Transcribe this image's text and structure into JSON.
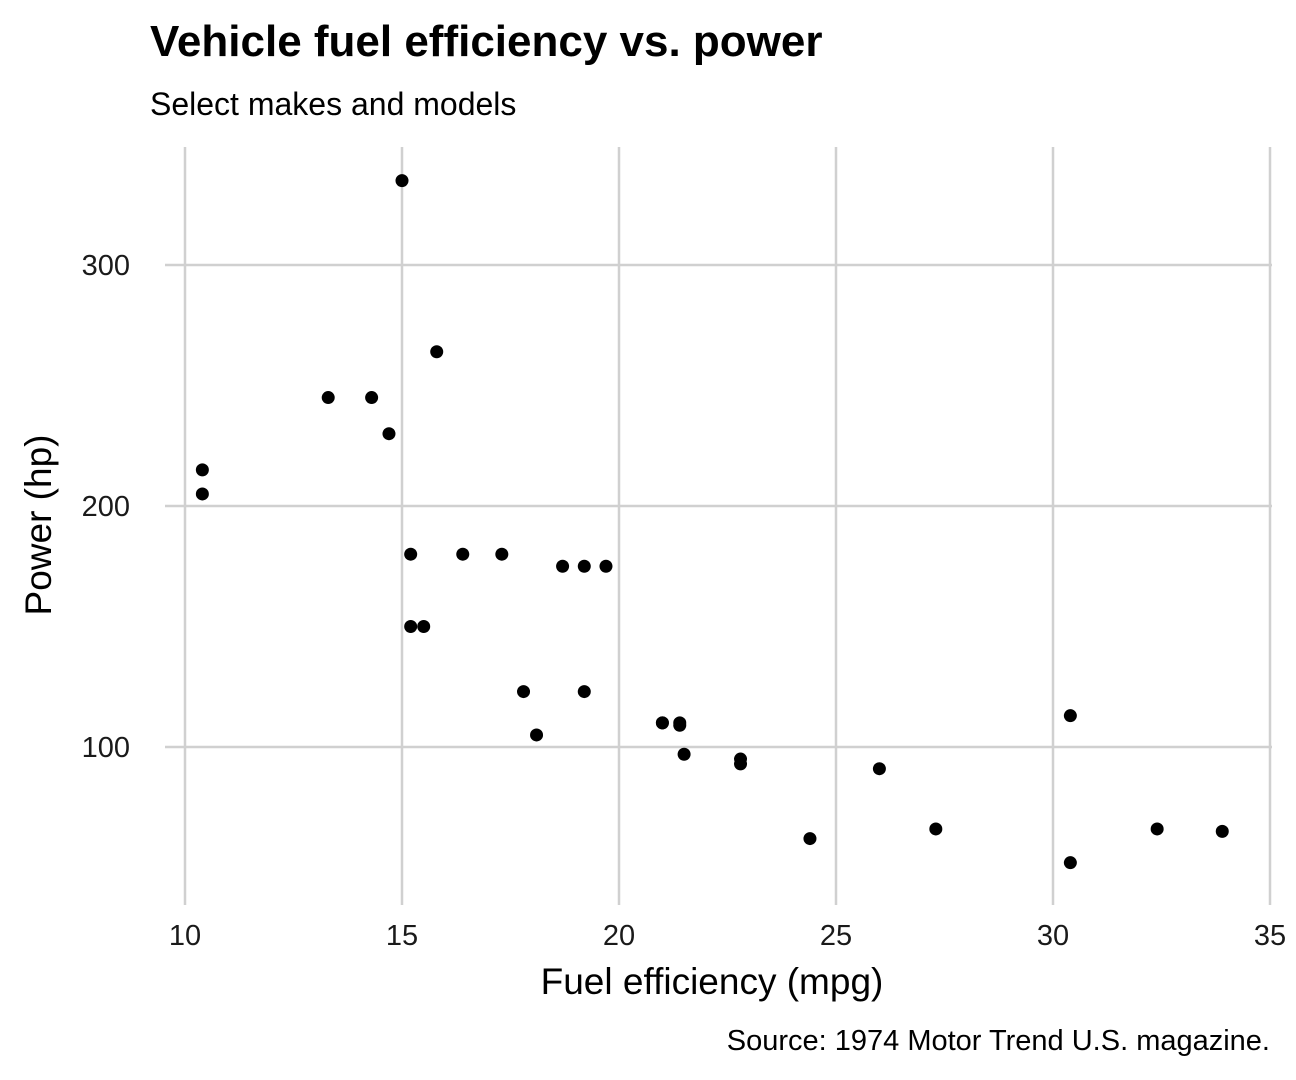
{
  "chart_data": {
    "type": "scatter",
    "title": "Vehicle fuel efficiency vs. power",
    "subtitle": "Select makes and models",
    "xlabel": "Fuel efficiency (mpg)",
    "ylabel": "Power (hp)",
    "caption": "Source: 1974 Motor Trend U.S. magazine.",
    "xlim": [
      10,
      35
    ],
    "ylim": [
      52,
      335
    ],
    "x_ticks": [
      10,
      15,
      20,
      25,
      30,
      35
    ],
    "y_ticks": [
      100,
      200,
      300
    ],
    "grid": true,
    "legend": "none",
    "point_color": "#000000",
    "grid_color": "#d0d0d0",
    "points": [
      {
        "x": 21.0,
        "y": 110
      },
      {
        "x": 21.0,
        "y": 110
      },
      {
        "x": 22.8,
        "y": 93
      },
      {
        "x": 21.4,
        "y": 110
      },
      {
        "x": 18.7,
        "y": 175
      },
      {
        "x": 18.1,
        "y": 105
      },
      {
        "x": 14.3,
        "y": 245
      },
      {
        "x": 24.4,
        "y": 62
      },
      {
        "x": 22.8,
        "y": 95
      },
      {
        "x": 19.2,
        "y": 123
      },
      {
        "x": 17.8,
        "y": 123
      },
      {
        "x": 16.4,
        "y": 180
      },
      {
        "x": 17.3,
        "y": 180
      },
      {
        "x": 15.2,
        "y": 180
      },
      {
        "x": 10.4,
        "y": 205
      },
      {
        "x": 10.4,
        "y": 215
      },
      {
        "x": 14.7,
        "y": 230
      },
      {
        "x": 32.4,
        "y": 66
      },
      {
        "x": 30.4,
        "y": 52
      },
      {
        "x": 33.9,
        "y": 65
      },
      {
        "x": 21.5,
        "y": 97
      },
      {
        "x": 15.5,
        "y": 150
      },
      {
        "x": 15.2,
        "y": 150
      },
      {
        "x": 13.3,
        "y": 245
      },
      {
        "x": 19.2,
        "y": 175
      },
      {
        "x": 27.3,
        "y": 66
      },
      {
        "x": 26.0,
        "y": 91
      },
      {
        "x": 30.4,
        "y": 113
      },
      {
        "x": 15.8,
        "y": 264
      },
      {
        "x": 19.7,
        "y": 175
      },
      {
        "x": 15.0,
        "y": 335
      },
      {
        "x": 21.4,
        "y": 109
      }
    ]
  }
}
